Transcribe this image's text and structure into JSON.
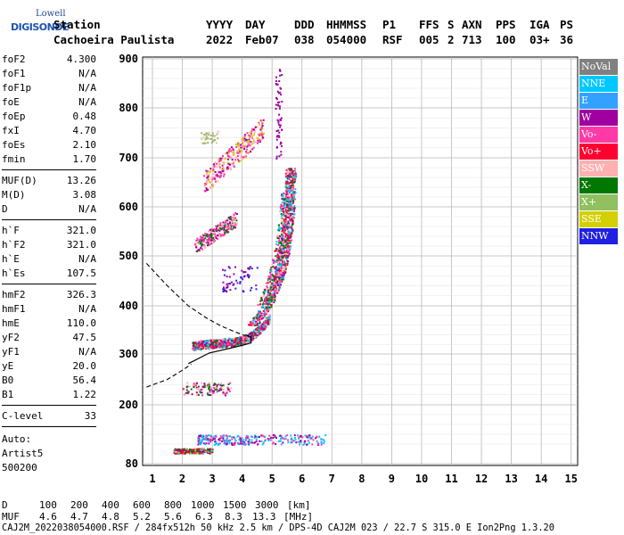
{
  "logo": {
    "line1": "Lowell",
    "line2": "DIGISONDE"
  },
  "header": {
    "row1": [
      "Station",
      "YYYY",
      "DAY",
      "DDD",
      "HHMMSS",
      "P1",
      "FFS",
      "S",
      "AXN",
      "PPS",
      "IGA",
      "PS"
    ],
    "row2": [
      "Cachoeira Paulista",
      "2022",
      "Feb07",
      "038",
      "054000",
      "RSF",
      "005",
      "2",
      "713",
      "100",
      "03+",
      "36"
    ]
  },
  "params": [
    [
      {
        "label": "foF2",
        "value": "4.300"
      },
      {
        "label": "foF1",
        "value": "N/A"
      },
      {
        "label": "foF1p",
        "value": "N/A"
      },
      {
        "label": "foE",
        "value": "N/A"
      },
      {
        "label": "foEp",
        "value": "0.48"
      },
      {
        "label": "fxI",
        "value": "4.70"
      },
      {
        "label": "foEs",
        "value": "2.10"
      },
      {
        "label": "fmin",
        "value": "1.70"
      }
    ],
    [
      {
        "label": "MUF(D)",
        "value": "13.26"
      },
      {
        "label": "M(D)",
        "value": "3.08"
      },
      {
        "label": "D",
        "value": "N/A"
      }
    ],
    [
      {
        "label": "h`F",
        "value": "321.0"
      },
      {
        "label": "h`F2",
        "value": "321.0"
      },
      {
        "label": "h`E",
        "value": "N/A"
      },
      {
        "label": "h`Es",
        "value": "107.5"
      }
    ],
    [
      {
        "label": "hmF2",
        "value": "326.3"
      },
      {
        "label": "hmF1",
        "value": "N/A"
      },
      {
        "label": "hmE",
        "value": "110.0"
      },
      {
        "label": "yF2",
        "value": "47.5"
      },
      {
        "label": "yF1",
        "value": "N/A"
      },
      {
        "label": "yE",
        "value": "20.0"
      },
      {
        "label": "B0",
        "value": "56.4"
      },
      {
        "label": "B1",
        "value": "1.22"
      }
    ],
    [
      {
        "label": "C-level",
        "value": "33"
      }
    ]
  ],
  "auto": {
    "line1": "Auto:",
    "line2": "Artist5",
    "line3": "500200"
  },
  "legend": [
    {
      "label": "NoVal",
      "color": "#808080"
    },
    {
      "label": "NNE",
      "color": "#00c8ff"
    },
    {
      "label": "E",
      "color": "#33a1ff"
    },
    {
      "label": "W",
      "color": "#a000a0"
    },
    {
      "label": "Vo-",
      "color": "#ff3aa8"
    },
    {
      "label": "Vo+",
      "color": "#ff0030"
    },
    {
      "label": "SSW",
      "color": "#ffb0b0"
    },
    {
      "label": "X-",
      "color": "#007800"
    },
    {
      "label": "X+",
      "color": "#90c060"
    },
    {
      "label": "SSE",
      "color": "#d4d000"
    },
    {
      "label": "NNW",
      "color": "#2020e0"
    }
  ],
  "footer": {
    "d_label": "D",
    "d_values": [
      "100",
      "200",
      "400",
      "600",
      "800",
      "1000",
      "1500",
      "3000",
      "[km]"
    ],
    "muf_label": "MUF",
    "muf_values": [
      "4.6",
      "4.7",
      "4.8",
      "5.2",
      "5.6",
      "6.3",
      "8.3",
      "13.3",
      "[MHz]"
    ],
    "file_line": "CAJ2M_2022038054000.RSF / 284fx512h 50 kHz 2.5 km / DPS-4D CAJ2M 023 / 22.7 S 315.0 E Ion2Png 1.3.20"
  },
  "chart_data": {
    "type": "scatter",
    "title": "",
    "xlabel": "",
    "ylabel": "",
    "xlim": [
      0.8,
      15
    ],
    "ylim": [
      80,
      905
    ],
    "xticks": [
      1,
      2,
      3,
      4,
      5,
      6,
      7,
      8,
      9,
      10,
      11,
      12,
      13,
      14,
      15
    ],
    "yticks": [
      80,
      200,
      300,
      400,
      500,
      600,
      700,
      800,
      900
    ],
    "grid": true,
    "clusters": [
      {
        "name": "es-layer",
        "x": [
          1.7,
          3.0
        ],
        "y": [
          102,
          112
        ],
        "colors": [
          "#007800",
          "#ff0030",
          "#a000a0",
          "#90c060"
        ]
      },
      {
        "name": "es-layer-2",
        "x": [
          2.5,
          6.8
        ],
        "y": [
          120,
          140
        ],
        "colors": [
          "#33a1ff",
          "#00c8ff",
          "#ff3aa8",
          "#a000a0"
        ]
      },
      {
        "name": "f-second-hop-low",
        "x": [
          2.0,
          3.6
        ],
        "y": [
          220,
          245
        ],
        "colors": [
          "#ff3aa8",
          "#007800",
          "#a000a0",
          "#ffb0b0"
        ]
      },
      {
        "name": "f-trace",
        "x": [
          2.3,
          5.3
        ],
        "y": [
          315,
          420
        ],
        "colors": [
          "#ff0030",
          "#ff3aa8",
          "#a000a0",
          "#007800",
          "#ffb0b0",
          "#00c8ff"
        ]
      },
      {
        "name": "f-second-hop",
        "x": [
          2.4,
          3.8
        ],
        "y": [
          520,
          600
        ],
        "colors": [
          "#a000a0",
          "#ff3aa8",
          "#007800",
          "#ffb0b0"
        ]
      },
      {
        "name": "f-third-hop",
        "x": [
          2.7,
          4.7
        ],
        "y": [
          650,
          800
        ],
        "colors": [
          "#a000a0",
          "#ffb0b0",
          "#ff3aa8",
          "#d4d000"
        ]
      }
    ],
    "profile_line": {
      "x": [
        2.2,
        2.9,
        3.6,
        4.0,
        4.3,
        4.3,
        4.1
      ],
      "y": [
        281,
        302,
        312,
        318,
        323,
        335,
        340
      ],
      "color": "#000000"
    },
    "dashed_line": {
      "x": [
        0.8,
        1.5,
        2.2,
        2.8,
        3.3,
        3.8,
        4.1
      ],
      "y": [
        485,
        440,
        400,
        375,
        358,
        345,
        338
      ],
      "x2": [
        0.8,
        1.5,
        2.0,
        2.3
      ],
      "y2": [
        235,
        250,
        268,
        280
      ],
      "color": "#000000"
    }
  }
}
